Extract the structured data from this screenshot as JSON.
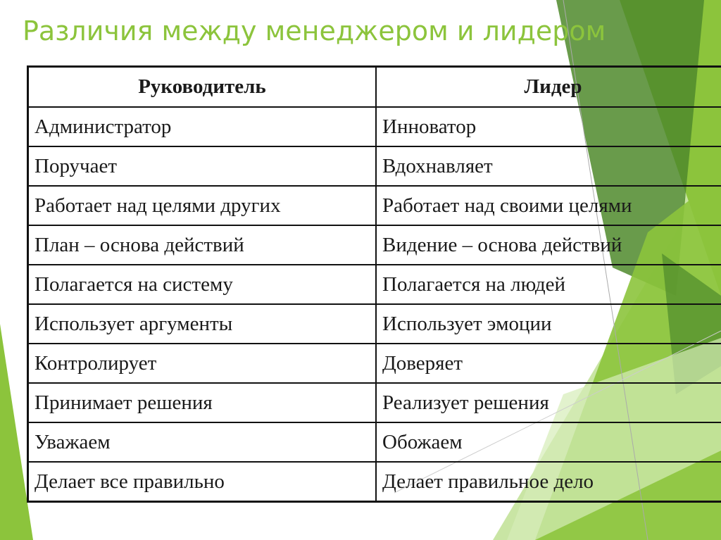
{
  "slide": {
    "title": "Различия между менеджером и лидером",
    "colors": {
      "title": "#8cc43c",
      "accent_dark": "#4f8a2b",
      "accent": "#8cc43c",
      "accent_light": "#c3e29a"
    }
  },
  "table": {
    "headers": [
      "Руководитель",
      "Лидер"
    ],
    "rows": [
      [
        "Администратор",
        "Инноватор"
      ],
      [
        "Поручает",
        "Вдохнавляет"
      ],
      [
        "Работает над целями других",
        "Работает над своими целями"
      ],
      [
        "План – основа действий",
        "Видение – основа действий"
      ],
      [
        "Полагается на систему",
        "Полагается на людей"
      ],
      [
        "Использует аргументы",
        "Использует эмоции"
      ],
      [
        "Контролирует",
        "Доверяет"
      ],
      [
        "Принимает решения",
        "Реализует решения"
      ],
      [
        "Уважаем",
        "Обожаем"
      ],
      [
        "Делает все правильно",
        "Делает правильное дело"
      ]
    ]
  }
}
